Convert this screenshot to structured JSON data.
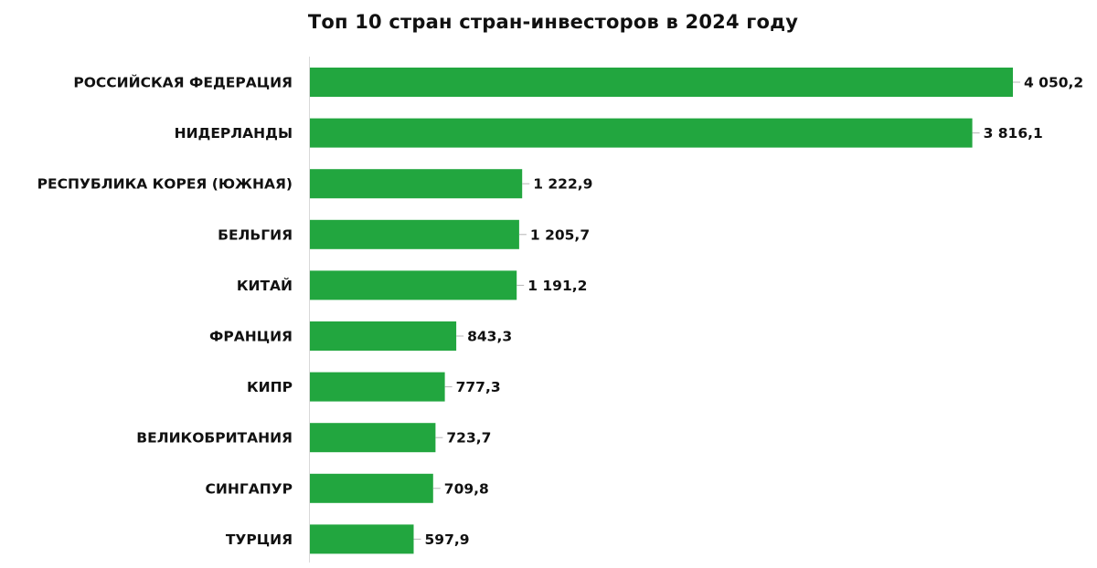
{
  "chart_data": {
    "type": "bar",
    "orientation": "horizontal",
    "title": "Топ 10 стран стран-инвесторов  в 2024 году",
    "categories": [
      "РОССИЙСКАЯ ФЕДЕРАЦИЯ",
      "НИДЕРЛАНДЫ",
      "РЕСПУБЛИКА КОРЕЯ (ЮЖНАЯ)",
      "БЕЛЬГИЯ",
      "КИТАЙ",
      "ФРАНЦИЯ",
      "КИПР",
      "ВЕЛИКОБРИТАНИЯ",
      "СИНГАПУР",
      "ТУРЦИЯ"
    ],
    "values": [
      4050.2,
      3816.1,
      1222.9,
      1205.7,
      1191.2,
      843.3,
      777.3,
      723.7,
      709.8,
      597.9
    ],
    "value_labels": [
      "4 050,2",
      "3 816,1",
      "1 222,9",
      "1 205,7",
      "1 191,2",
      "843,3",
      "777,3",
      "723,7",
      "709,8",
      "597,9"
    ],
    "xlim": [
      0,
      4050.2
    ],
    "grid": false,
    "legend": "none",
    "bar_color": "#22a63f"
  }
}
